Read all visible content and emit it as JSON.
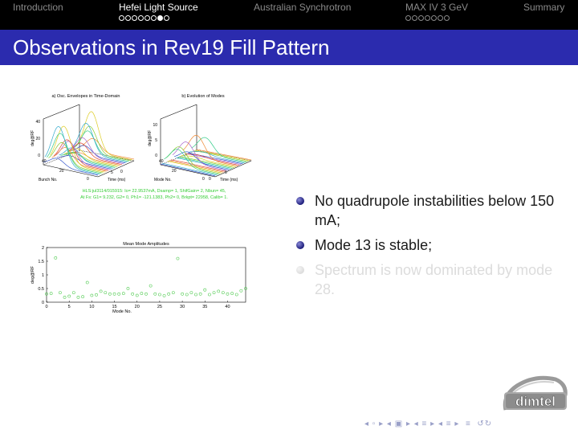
{
  "nav": {
    "sections": [
      {
        "label": "Introduction",
        "dots": 0,
        "current": -1,
        "active": false
      },
      {
        "label": "Hefei Light Source",
        "dots": 8,
        "current": 6,
        "active": true
      },
      {
        "label": "Australian Synchrotron",
        "dots": 0,
        "current": -1,
        "active": false
      },
      {
        "label": "MAX IV 3 GeV",
        "dots": 7,
        "current": -1,
        "active": false
      },
      {
        "label": "Summary",
        "dots": 0,
        "current": -1,
        "active": false
      }
    ]
  },
  "slide": {
    "title": "Observations in Rev19 Fill Pattern",
    "bullets": [
      {
        "text": "No quadrupole instabilities below 150 mA;",
        "faded": false
      },
      {
        "text": "Mode 13 is stable;",
        "faded": false
      },
      {
        "text": "Spectrum is now dominated by mode 28.",
        "faded": true
      }
    ]
  },
  "figure_a": {
    "title": "a) Osc. Envelopes in Time-Domain",
    "zlabel": "deg@RF",
    "xlabel": "Bunch No.",
    "ylabel": "Time (ms)",
    "zticks": [
      "0",
      "20",
      "40"
    ],
    "xticks": [
      "0",
      "20",
      "40"
    ],
    "yticks": [
      "0",
      "5"
    ]
  },
  "figure_b": {
    "title": "b) Evolution of Modes",
    "zlabel": "deg@RF",
    "xlabel": "Mode No.",
    "ylabel": "Time (ms)",
    "zticks": [
      "0",
      "5",
      "10"
    ],
    "xticks": [
      "0",
      "20",
      "40"
    ],
    "yticks": [
      "0",
      "5"
    ]
  },
  "info_text": {
    "line1": "HLS:jul3114/015915: Io= 22.9537mA, Dsamp= 1, ShifGain= 2, Nbun= 45,",
    "line2": "At Fs: G1= 9.232, G2= 0, Ph1= -121.1383, Ph2= 0, Brkpt= 22958, Calib= 1.",
    "color": "#33cc33"
  },
  "chart_data": {
    "type": "scatter",
    "title": "Mean Mode Amplitudes",
    "xlabel": "Mode No.",
    "ylabel": "deg@RF",
    "xlim": [
      0,
      44
    ],
    "ylim": [
      0,
      2
    ],
    "xticks": [
      0,
      5,
      10,
      15,
      20,
      25,
      30,
      35,
      40
    ],
    "yticks": [
      0,
      0.5,
      1,
      1.5,
      2
    ],
    "marker_color": "#55cc55",
    "x": [
      0,
      1,
      2,
      3,
      4,
      5,
      6,
      7,
      8,
      9,
      10,
      11,
      12,
      13,
      14,
      15,
      16,
      17,
      18,
      19,
      20,
      21,
      22,
      23,
      24,
      25,
      26,
      27,
      28,
      29,
      30,
      31,
      32,
      33,
      34,
      35,
      36,
      37,
      38,
      39,
      40,
      41,
      42,
      43,
      44
    ],
    "y": [
      0.3,
      0.32,
      1.62,
      0.35,
      0.18,
      0.22,
      0.35,
      0.18,
      0.2,
      0.72,
      0.25,
      0.27,
      0.4,
      0.35,
      0.3,
      0.3,
      0.3,
      0.32,
      0.5,
      0.3,
      0.25,
      0.32,
      0.3,
      0.6,
      0.3,
      0.28,
      0.24,
      0.3,
      0.35,
      1.6,
      0.3,
      0.28,
      0.35,
      0.28,
      0.3,
      0.45,
      0.28,
      0.35,
      0.4,
      0.35,
      0.3,
      0.32,
      0.28,
      0.42,
      0.5
    ]
  }
}
